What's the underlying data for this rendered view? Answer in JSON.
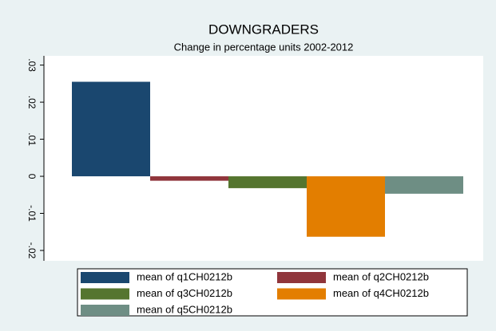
{
  "chart_data": {
    "type": "bar",
    "title": "DOWNGRADERS",
    "subtitle": "Change in percentage units 2002-2012",
    "series": [
      {
        "name": "mean of q1CH0212b",
        "color": "#1a476f",
        "values": [
          0.0255
        ]
      },
      {
        "name": "mean of q2CH0212b",
        "color": "#90353b",
        "values": [
          -0.0012
        ]
      },
      {
        "name": "mean of q3CH0212b",
        "color": "#55752f",
        "values": [
          -0.0032
        ]
      },
      {
        "name": "mean of q4CH0212b",
        "color": "#e37e00",
        "values": [
          -0.0163
        ]
      },
      {
        "name": "mean of q5CH0212b",
        "color": "#6e8e84",
        "values": [
          -0.0047
        ]
      }
    ],
    "ylim": [
      -0.0228,
      0.0325
    ],
    "yticks": [
      {
        "value": -0.02,
        "label": "-.02"
      },
      {
        "value": -0.01,
        "label": "-.01"
      },
      0,
      {
        "value": 0.01,
        "label": ".01"
      },
      {
        "value": 0.02,
        "label": ".02"
      },
      {
        "value": 0.03,
        "label": ".03"
      }
    ],
    "legend": "bottom"
  }
}
